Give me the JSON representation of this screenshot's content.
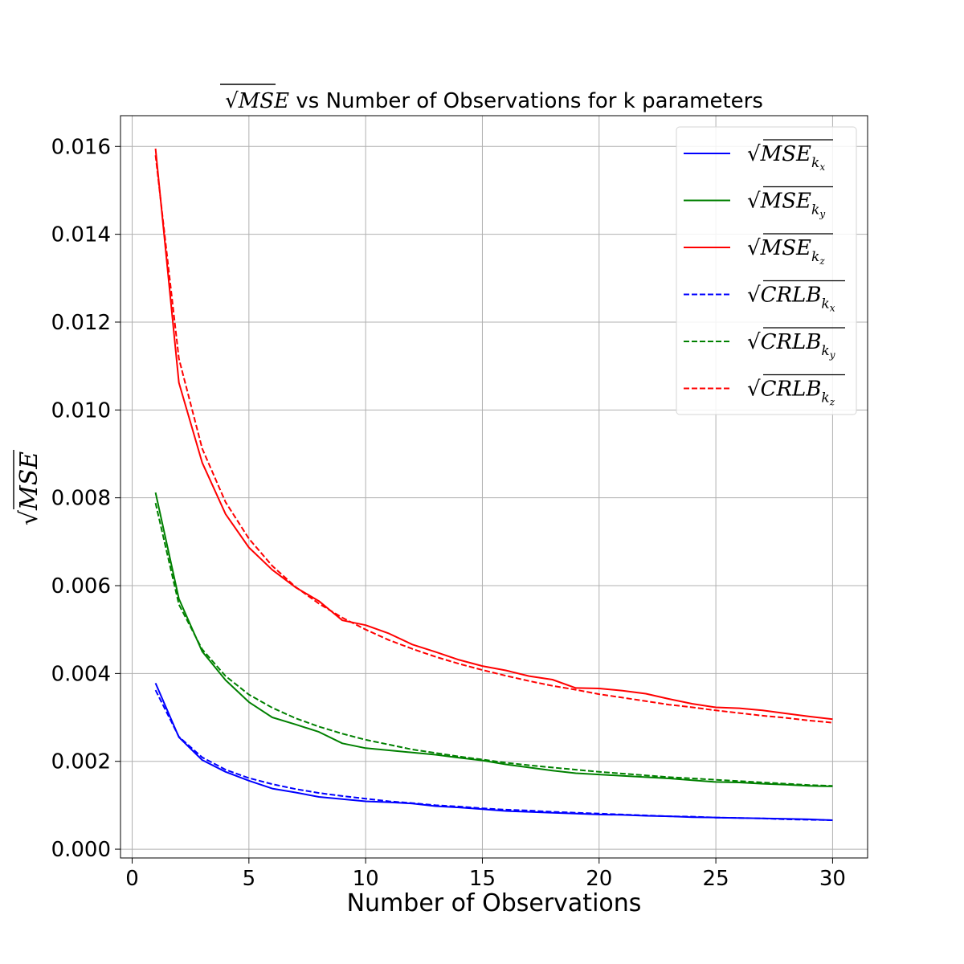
{
  "chart_data": {
    "type": "line",
    "title": "√MSE vs Number of Observations for k parameters",
    "xlabel": "Number of Observations",
    "ylabel": "√MSE",
    "xlim": [
      -0.5,
      31.5
    ],
    "ylim": [
      -0.0002,
      0.0167
    ],
    "xticks": [
      0,
      5,
      10,
      15,
      20,
      25,
      30
    ],
    "xtick_labels": [
      "0",
      "5",
      "10",
      "15",
      "20",
      "25",
      "30"
    ],
    "yticks": [
      0,
      0.002,
      0.004,
      0.006,
      0.008,
      0.01,
      0.012,
      0.014,
      0.016
    ],
    "ytick_labels": [
      "0.000",
      "0.002",
      "0.004",
      "0.006",
      "0.008",
      "0.010",
      "0.012",
      "0.014",
      "0.016"
    ],
    "grid": true,
    "legend_position": "top-right",
    "x": [
      1,
      2,
      3,
      4,
      5,
      6,
      7,
      8,
      9,
      10,
      11,
      12,
      13,
      14,
      15,
      16,
      17,
      18,
      19,
      20,
      21,
      22,
      23,
      24,
      25,
      26,
      27,
      28,
      29,
      30
    ],
    "series": [
      {
        "name": "√MSE_kx",
        "base": "MSE",
        "sub": "x",
        "color": "#0000ff",
        "dash": false,
        "values": [
          0.00378,
          0.00255,
          0.00203,
          0.00176,
          0.00156,
          0.00138,
          0.00129,
          0.00119,
          0.00114,
          0.00109,
          0.00107,
          0.00104,
          0.00098,
          0.00095,
          0.00091,
          0.00087,
          0.00085,
          0.00083,
          0.00081,
          0.00079,
          0.00078,
          0.00076,
          0.00075,
          0.00073,
          0.00072,
          0.00071,
          0.0007,
          0.00069,
          0.00068,
          0.00066
        ]
      },
      {
        "name": "√MSE_ky",
        "base": "MSE",
        "sub": "y",
        "color": "#008000",
        "dash": false,
        "values": [
          0.00812,
          0.0057,
          0.0045,
          0.00385,
          0.00335,
          0.003,
          0.00284,
          0.00267,
          0.00241,
          0.0023,
          0.00225,
          0.0022,
          0.00215,
          0.00208,
          0.00202,
          0.00193,
          0.00186,
          0.00179,
          0.00173,
          0.0017,
          0.00167,
          0.00164,
          0.00161,
          0.00157,
          0.00153,
          0.00152,
          0.00149,
          0.00147,
          0.00144,
          0.00143
        ]
      },
      {
        "name": "√MSE_kz",
        "base": "MSE",
        "sub": "z",
        "color": "#ff0000",
        "dash": false,
        "values": [
          0.01595,
          0.01062,
          0.0088,
          0.00763,
          0.00687,
          0.00636,
          0.00596,
          0.00565,
          0.00521,
          0.0051,
          0.00491,
          0.00466,
          0.00449,
          0.00431,
          0.00417,
          0.00407,
          0.00394,
          0.00386,
          0.00367,
          0.00366,
          0.00361,
          0.00354,
          0.00342,
          0.00331,
          0.00323,
          0.00321,
          0.00316,
          0.00309,
          0.00302,
          0.00296
        ]
      },
      {
        "name": "√CRLB_kx",
        "base": "CRLB",
        "sub": "x",
        "color": "#0000ff",
        "dash": true,
        "values": [
          0.00362,
          0.00256,
          0.00209,
          0.00181,
          0.00162,
          0.00148,
          0.00137,
          0.00128,
          0.00121,
          0.00115,
          0.00109,
          0.00105,
          0.001,
          0.00097,
          0.00093,
          0.0009,
          0.00088,
          0.00085,
          0.00083,
          0.00081,
          0.00079,
          0.00077,
          0.00075,
          0.00074,
          0.00072,
          0.00071,
          0.0007,
          0.00068,
          0.00067,
          0.00066
        ]
      },
      {
        "name": "√CRLB_ky",
        "base": "CRLB",
        "sub": "y",
        "color": "#008000",
        "dash": true,
        "values": [
          0.00788,
          0.00557,
          0.00455,
          0.00394,
          0.00352,
          0.00322,
          0.00298,
          0.00279,
          0.00263,
          0.00249,
          0.00238,
          0.00227,
          0.00219,
          0.00211,
          0.00204,
          0.00197,
          0.00191,
          0.00186,
          0.00181,
          0.00176,
          0.00172,
          0.00168,
          0.00164,
          0.00161,
          0.00158,
          0.00155,
          0.00152,
          0.00149,
          0.00146,
          0.00144
        ]
      },
      {
        "name": "√CRLB_kz",
        "base": "CRLB",
        "sub": "z",
        "color": "#ff0000",
        "dash": true,
        "values": [
          0.0158,
          0.01117,
          0.00912,
          0.0079,
          0.00707,
          0.00645,
          0.00597,
          0.00559,
          0.00527,
          0.005,
          0.00476,
          0.00456,
          0.00438,
          0.00422,
          0.00408,
          0.00395,
          0.00383,
          0.00372,
          0.00363,
          0.00353,
          0.00345,
          0.00337,
          0.00329,
          0.00323,
          0.00316,
          0.0031,
          0.00304,
          0.00299,
          0.00293,
          0.00288
        ]
      }
    ]
  }
}
